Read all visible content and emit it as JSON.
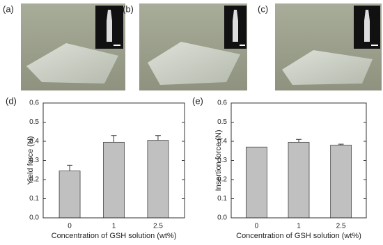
{
  "panel_labels": [
    "(a)",
    "(b)",
    "(c)"
  ],
  "chart_data": [
    {
      "type": "bar",
      "label": "(d)",
      "x_label": "Concentration of GSH solution (wt%)",
      "y_label": "Yield force (N)",
      "categories": [
        "0",
        "1",
        "2.5"
      ],
      "values": [
        0.245,
        0.395,
        0.405
      ],
      "errors": [
        0.03,
        0.035,
        0.025
      ],
      "color": "#c0c0c0",
      "ylim": [
        0,
        0.6
      ],
      "yticks": [
        {
          "value": 0,
          "label": "0.0"
        },
        {
          "value": 0.1,
          "label": "0.1"
        },
        {
          "value": 0.2,
          "label": "0.2"
        },
        {
          "value": 0.3,
          "label": "0.3"
        },
        {
          "value": 0.4,
          "label": "0.4"
        },
        {
          "value": 0.5,
          "label": "0.5"
        },
        {
          "value": 0.6,
          "label": "0.6"
        }
      ]
    },
    {
      "type": "bar",
      "label": "(e)",
      "x_label": "Concentration of GSH solution (wt%)",
      "y_label": "Insertion force (N)",
      "categories": [
        "0",
        "1",
        "2.5"
      ],
      "values": [
        0.37,
        0.395,
        0.38
      ],
      "errors": [
        0,
        0.015,
        0.005
      ],
      "color": "#c0c0c0",
      "ylim": [
        0,
        0.6
      ],
      "yticks": [
        {
          "value": 0,
          "label": "0.0"
        },
        {
          "value": 0.1,
          "label": "0.1"
        },
        {
          "value": 0.2,
          "label": "0.2"
        },
        {
          "value": 0.3,
          "label": "0.3"
        },
        {
          "value": 0.4,
          "label": "0.4"
        },
        {
          "value": 0.5,
          "label": "0.5"
        },
        {
          "value": 0.6,
          "label": "0.6"
        }
      ]
    }
  ]
}
